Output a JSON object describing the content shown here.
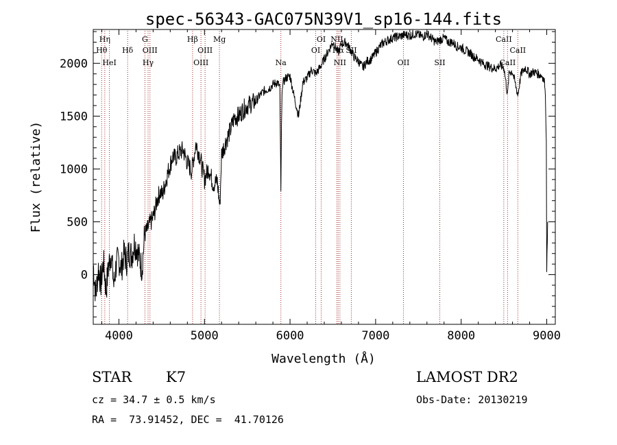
{
  "chart_data": {
    "type": "line",
    "title": "spec-56343-GAC075N39V1_sp16-144.fits",
    "xlabel": "Wavelength (Å)",
    "ylabel": "Flux (relative)",
    "xlim": [
      3700,
      9100
    ],
    "ylim": [
      -470,
      2320
    ],
    "xticks": [
      4000,
      5000,
      6000,
      7000,
      8000,
      9000
    ],
    "yticks": [
      0,
      500,
      1000,
      1500,
      2000
    ],
    "xtick_labels": [
      "4000",
      "5000",
      "6000",
      "7000",
      "8000",
      "9000"
    ],
    "ytick_labels": [
      "0",
      "500",
      "1000",
      "1500",
      "2000"
    ],
    "grid": false,
    "series": [
      {
        "x": [
          3700,
          3730,
          3760,
          3790,
          3820,
          3850,
          3880,
          3910,
          3940,
          3970,
          4000,
          4030,
          4060,
          4090,
          4120,
          4150,
          4180,
          4210,
          4240,
          4270,
          4300,
          4330,
          4360,
          4390,
          4420,
          4450,
          4480,
          4510,
          4540,
          4570,
          4600,
          4630,
          4660,
          4700,
          4750,
          4800,
          4850,
          4900,
          4950,
          5000,
          5050,
          5100,
          5150,
          5180,
          5200,
          5250,
          5300,
          5350,
          5400,
          5450,
          5500,
          5550,
          5600,
          5650,
          5700,
          5750,
          5800,
          5850,
          5880,
          5893,
          5900,
          5910,
          5950,
          6000,
          6050,
          6100,
          6150,
          6200,
          6250,
          6300,
          6350,
          6400,
          6450,
          6500,
          6563,
          6600,
          6650,
          6700,
          6750,
          6800,
          6850,
          6900,
          6950,
          7000,
          7050,
          7100,
          7150,
          7200,
          7250,
          7300,
          7350,
          7400,
          7450,
          7500,
          7550,
          7600,
          7650,
          7700,
          7750,
          7800,
          7850,
          7900,
          7950,
          8000,
          8050,
          8100,
          8150,
          8200,
          8250,
          8300,
          8350,
          8400,
          8450,
          8500,
          8542,
          8560,
          8600,
          8662,
          8700,
          8750,
          8800,
          8850,
          8900,
          8950,
          8980,
          8995,
          9000,
          9010
        ],
        "values": [
          100,
          -200,
          60,
          -80,
          120,
          -150,
          90,
          200,
          -100,
          110,
          140,
          60,
          200,
          130,
          220,
          180,
          300,
          250,
          150,
          60,
          380,
          420,
          480,
          520,
          600,
          720,
          780,
          760,
          860,
          960,
          1040,
          1120,
          1100,
          1150,
          1180,
          1060,
          980,
          1240,
          1110,
          900,
          1010,
          860,
          880,
          640,
          1140,
          1260,
          1360,
          1490,
          1500,
          1560,
          1600,
          1620,
          1640,
          1700,
          1740,
          1760,
          1800,
          1820,
          1780,
          800,
          1400,
          1800,
          1860,
          1880,
          1680,
          1500,
          1820,
          1860,
          1940,
          1900,
          1960,
          2040,
          2120,
          2200,
          2100,
          2180,
          2200,
          2140,
          2060,
          2020,
          1960,
          2020,
          2040,
          2100,
          2160,
          2200,
          2220,
          2240,
          2250,
          2260,
          2270,
          2260,
          2280,
          2270,
          2250,
          2280,
          2240,
          2200,
          2220,
          2240,
          2200,
          2200,
          2160,
          2150,
          2120,
          2100,
          2060,
          2040,
          2000,
          1980,
          1960,
          1950,
          1980,
          1960,
          1700,
          1920,
          1920,
          1700,
          1900,
          1960,
          1900,
          1920,
          1900,
          1880,
          1800,
          1300,
          0,
          500
        ]
      }
    ],
    "lines": [
      {
        "label": "Hη",
        "x": 3835,
        "row": 0
      },
      {
        "label": "Hθ",
        "x": 3798,
        "row": 1
      },
      {
        "label": "HeI",
        "x": 3889,
        "row": 2
      },
      {
        "label": "Hδ",
        "x": 4102,
        "row": 1
      },
      {
        "label": "G",
        "x": 4304,
        "row": 0
      },
      {
        "label": "OIII",
        "x": 4363,
        "row": 1
      },
      {
        "label": "Hγ",
        "x": 4341,
        "row": 2
      },
      {
        "label": "Hβ",
        "x": 4861,
        "row": 0
      },
      {
        "label": "OIII",
        "x": 4959,
        "row": 2
      },
      {
        "label": "OIII",
        "x": 5007,
        "row": 1
      },
      {
        "label": "Mg",
        "x": 5175,
        "row": 0
      },
      {
        "label": "Na",
        "x": 5893,
        "row": 2
      },
      {
        "label": "OI",
        "x": 6300,
        "row": 1
      },
      {
        "label": "OI",
        "x": 6364,
        "row": 0
      },
      {
        "label": "NII",
        "x": 6548,
        "row": 0
      },
      {
        "label": "Hα",
        "x": 6563,
        "row": 1
      },
      {
        "label": "NII",
        "x": 6583,
        "row": 2
      },
      {
        "label": "SII",
        "x": 6716,
        "row": 1
      },
      {
        "label": "OII",
        "x": 7325,
        "row": 2
      },
      {
        "label": "SII",
        "x": 7750,
        "row": 2
      },
      {
        "label": "CaII",
        "x": 8498,
        "row": 0
      },
      {
        "label": "CaII",
        "x": 8542,
        "row": 2
      },
      {
        "label": "CaII",
        "x": 8662,
        "row": 1
      }
    ]
  },
  "info": {
    "object_class": "STAR",
    "subclass": "K7",
    "redshift": "cz = 34.7 ± 0.5 km/s",
    "coords": "RA =  73.91452, DEC =  41.70126",
    "survey": "LAMOST DR2",
    "obs_date": "Obs-Date: 20130219"
  },
  "colors": {
    "spectrum": "#000000",
    "line_markers": "#a02020",
    "axes": "#000000"
  }
}
